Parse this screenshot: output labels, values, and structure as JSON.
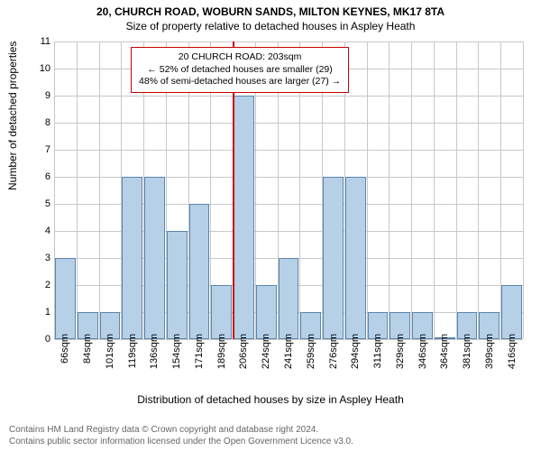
{
  "title_line1": "20, CHURCH ROAD, WOBURN SANDS, MILTON KEYNES, MK17 8TA",
  "title_line2": "Size of property relative to detached houses in Aspley Heath",
  "ylabel": "Number of detached properties",
  "xlabel": "Distribution of detached houses by size in Aspley Heath",
  "chart": {
    "type": "bar",
    "ylim": [
      0,
      11
    ],
    "yticks": [
      0,
      1,
      2,
      3,
      4,
      5,
      6,
      7,
      8,
      9,
      10,
      11
    ],
    "categories": [
      "66sqm",
      "84sqm",
      "101sqm",
      "119sqm",
      "136sqm",
      "154sqm",
      "171sqm",
      "189sqm",
      "206sqm",
      "224sqm",
      "241sqm",
      "259sqm",
      "276sqm",
      "294sqm",
      "311sqm",
      "329sqm",
      "346sqm",
      "364sqm",
      "381sqm",
      "399sqm",
      "416sqm"
    ],
    "values": [
      3,
      1,
      1,
      6,
      6,
      4,
      5,
      2,
      9,
      2,
      3,
      1,
      6,
      6,
      1,
      1,
      1,
      0,
      1,
      1,
      2
    ],
    "bar_color": "#b6d0e8",
    "bar_border": "#5b86ab",
    "grid_color": "#c8c8c8",
    "background_color": "#ffffff",
    "bar_width_ratio": 0.92,
    "highlight_index": 8,
    "highlight_color": "#cc0000"
  },
  "annotation": {
    "line1": "20 CHURCH ROAD: 203sqm",
    "line2": "← 52% of detached houses are smaller (29)",
    "line3": "48% of semi-detached houses are larger (27) →",
    "border_color": "#cc0000"
  },
  "footer_line1": "Contains HM Land Registry data © Crown copyright and database right 2024.",
  "footer_line2": "Contains public sector information licensed under the Open Government Licence v3.0."
}
